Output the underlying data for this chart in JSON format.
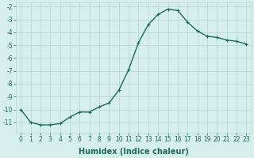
{
  "x": [
    0,
    1,
    2,
    3,
    4,
    5,
    6,
    7,
    8,
    9,
    10,
    11,
    12,
    13,
    14,
    15,
    16,
    17,
    18,
    19,
    20,
    21,
    22,
    23
  ],
  "y": [
    -10.0,
    -11.0,
    -11.2,
    -11.2,
    -11.1,
    -10.6,
    -10.2,
    -10.2,
    -9.8,
    -9.5,
    -8.5,
    -6.9,
    -4.8,
    -3.4,
    -2.6,
    -2.2,
    -2.3,
    -3.2,
    -3.9,
    -4.3,
    -4.4,
    -4.6,
    -4.7,
    -4.9
  ],
  "line_color": "#1a6b5a",
  "marker": "+",
  "marker_size": 3,
  "bg_color": "#d6eeee",
  "grid_color": "#b8d8d8",
  "xlabel": "Humidex (Indice chaleur)",
  "ylim": [
    -11.8,
    -1.7
  ],
  "xlim": [
    -0.5,
    23.5
  ],
  "yticks": [
    -2,
    -3,
    -4,
    -5,
    -6,
    -7,
    -8,
    -9,
    -10,
    -11
  ],
  "xticks": [
    0,
    1,
    2,
    3,
    4,
    5,
    6,
    7,
    8,
    9,
    10,
    11,
    12,
    13,
    14,
    15,
    16,
    17,
    18,
    19,
    20,
    21,
    22,
    23
  ],
  "tick_fontsize": 5.5,
  "xlabel_fontsize": 7,
  "line_width": 1.0
}
